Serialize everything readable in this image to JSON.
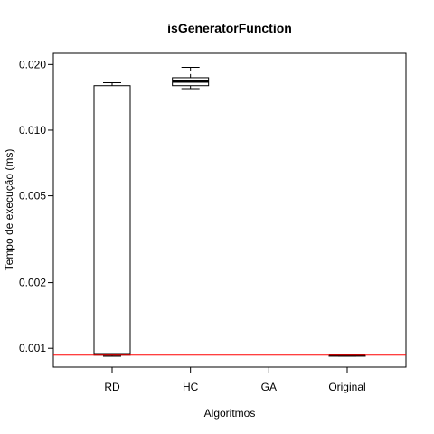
{
  "chart_data": {
    "type": "boxplot",
    "title": "isGeneratorFunction",
    "xlabel": "Algoritmos",
    "ylabel": "Tempo de execução (ms)",
    "y_scale": "log",
    "ylim": [
      0.00082,
      0.0225
    ],
    "y_ticks": [
      0.001,
      0.002,
      0.005,
      0.01,
      0.02
    ],
    "y_tick_labels": [
      "0.001",
      "0.002",
      "0.005",
      "0.010",
      "0.020"
    ],
    "categories": [
      "RD",
      "HC",
      "GA",
      "Original"
    ],
    "boxes": [
      {
        "name": "RD",
        "whisker_low": 0.00092,
        "q1": 0.00093,
        "median": 0.00094,
        "q3": 0.016,
        "whisker_high": 0.0165
      },
      {
        "name": "HC",
        "whisker_low": 0.0155,
        "q1": 0.016,
        "median": 0.0167,
        "q3": 0.0174,
        "whisker_high": 0.0194
      },
      {
        "name": "GA"
      },
      {
        "name": "Original",
        "whisker_low": 0.00092,
        "q1": 0.00092,
        "median": 0.00093,
        "q3": 0.00093,
        "whisker_high": 0.00093
      }
    ],
    "reference_line": {
      "value": 0.00093,
      "color": "#ff0000"
    },
    "grid": false,
    "legend": "none"
  }
}
